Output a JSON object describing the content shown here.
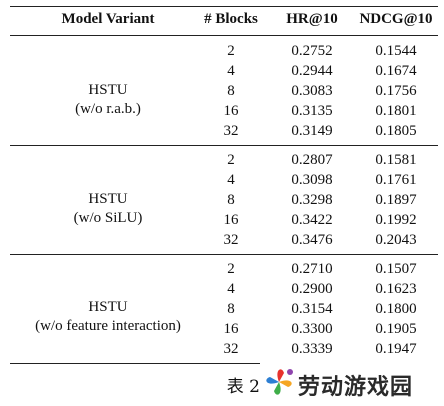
{
  "headers": {
    "model": "Model Variant",
    "blocks": "# Blocks",
    "hr": "HR@10",
    "ndcg": "NDCG@10"
  },
  "groups": [
    {
      "label_line1": "HSTU",
      "label_line2": "(w/o r.a.b.)",
      "rows": [
        {
          "blocks": "2",
          "hr": "0.2752",
          "ndcg": "0.1544"
        },
        {
          "blocks": "4",
          "hr": "0.2944",
          "ndcg": "0.1674"
        },
        {
          "blocks": "8",
          "hr": "0.3083",
          "ndcg": "0.1756"
        },
        {
          "blocks": "16",
          "hr": "0.3135",
          "ndcg": "0.1801"
        },
        {
          "blocks": "32",
          "hr": "0.3149",
          "ndcg": "0.1805"
        }
      ]
    },
    {
      "label_line1": "HSTU",
      "label_line2": "(w/o SiLU)",
      "rows": [
        {
          "blocks": "2",
          "hr": "0.2807",
          "ndcg": "0.1581"
        },
        {
          "blocks": "4",
          "hr": "0.3098",
          "ndcg": "0.1761"
        },
        {
          "blocks": "8",
          "hr": "0.3298",
          "ndcg": "0.1897"
        },
        {
          "blocks": "16",
          "hr": "0.3422",
          "ndcg": "0.1992"
        },
        {
          "blocks": "32",
          "hr": "0.3476",
          "ndcg": "0.2043"
        }
      ]
    },
    {
      "label_line1": "HSTU",
      "label_line2": "(w/o feature interaction)",
      "rows": [
        {
          "blocks": "2",
          "hr": "0.2710",
          "ndcg": "0.1507"
        },
        {
          "blocks": "4",
          "hr": "0.2900",
          "ndcg": "0.1623"
        },
        {
          "blocks": "8",
          "hr": "0.3154",
          "ndcg": "0.1800"
        },
        {
          "blocks": "16",
          "hr": "0.3300",
          "ndcg": "0.1905"
        },
        {
          "blocks": "32",
          "hr": "0.3339",
          "ndcg": "0.1947"
        }
      ]
    }
  ],
  "caption": "表 2",
  "watermark": {
    "text": "劳动游戏园",
    "logo_icon": "pinwheel-logo-icon",
    "colors": [
      "#e8322d",
      "#f5a623",
      "#3fae49",
      "#2d7fd3",
      "#8e44ad"
    ]
  }
}
